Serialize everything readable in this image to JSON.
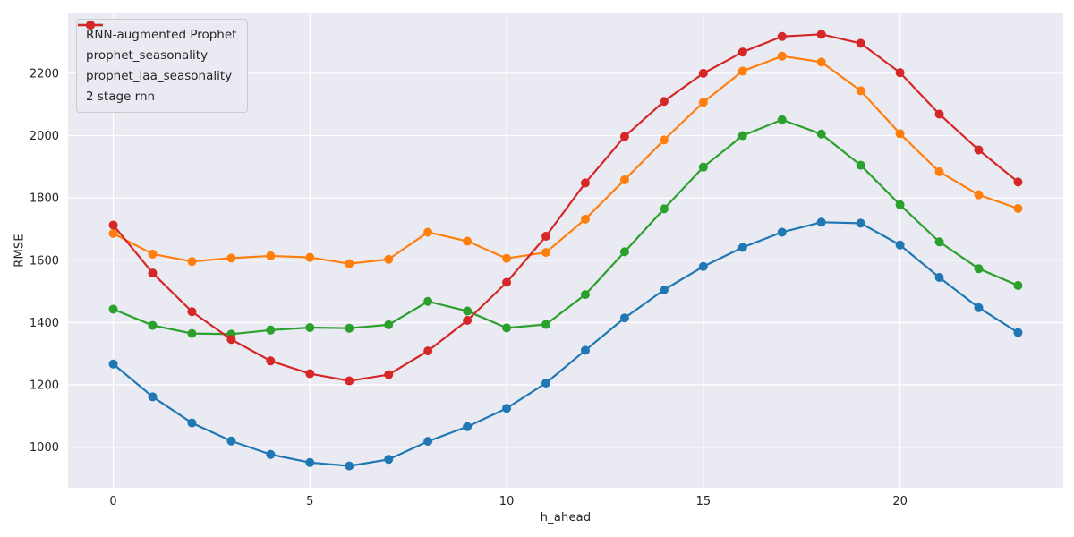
{
  "chart_data": {
    "type": "line",
    "xlabel": "h_ahead",
    "ylabel": "RMSE",
    "x": [
      0,
      1,
      2,
      3,
      4,
      5,
      6,
      7,
      8,
      9,
      10,
      11,
      12,
      13,
      14,
      15,
      16,
      17,
      18,
      19,
      20,
      21,
      22,
      23
    ],
    "series": [
      {
        "name": "RNN-augmented Prophet",
        "color": "#1f77b4",
        "values": [
          1267,
          1162,
          1078,
          1020,
          977,
          951,
          940,
          961,
          1019,
          1066,
          1125,
          1206,
          1311,
          1415,
          1505,
          1580,
          1641,
          1690,
          1722,
          1719,
          1649,
          1545,
          1448,
          1368
        ]
      },
      {
        "name": "prophet_seasonality",
        "color": "#ff7f0e",
        "values": [
          1686,
          1620,
          1596,
          1607,
          1614,
          1609,
          1589,
          1603,
          1690,
          1661,
          1606,
          1625,
          1732,
          1858,
          1986,
          2107,
          2207,
          2255,
          2236,
          2144,
          2006,
          1884,
          1810,
          1766
        ]
      },
      {
        "name": "prophet_laa_seasonality",
        "color": "#2ca02c",
        "values": [
          1443,
          1391,
          1365,
          1363,
          1376,
          1384,
          1382,
          1393,
          1468,
          1437,
          1383,
          1394,
          1490,
          1627,
          1765,
          1899,
          2000,
          2051,
          2005,
          1905,
          1778,
          1659,
          1573,
          1519
        ]
      },
      {
        "name": "2 stage rnn",
        "color": "#d62728",
        "values": [
          1713,
          1559,
          1435,
          1346,
          1277,
          1236,
          1213,
          1233,
          1309,
          1407,
          1529,
          1677,
          1848,
          1997,
          2110,
          2200,
          2268,
          2318,
          2325,
          2296,
          2202,
          2069,
          1954,
          1851
        ]
      }
    ],
    "xticks": [
      0,
      5,
      10,
      15,
      20
    ],
    "yticks": [
      1000,
      1200,
      1400,
      1600,
      1800,
      2000,
      2200
    ],
    "xlim": [
      -1.15,
      24.15
    ],
    "ylim": [
      870,
      2392
    ],
    "grid": true,
    "legend_position": "upper-left",
    "axes_background": "#eaeaf2",
    "grid_color": "#ffffff",
    "tick_label_color": "#262626",
    "marker": "circle",
    "marker_radius": 5,
    "line_width": 2.2
  }
}
